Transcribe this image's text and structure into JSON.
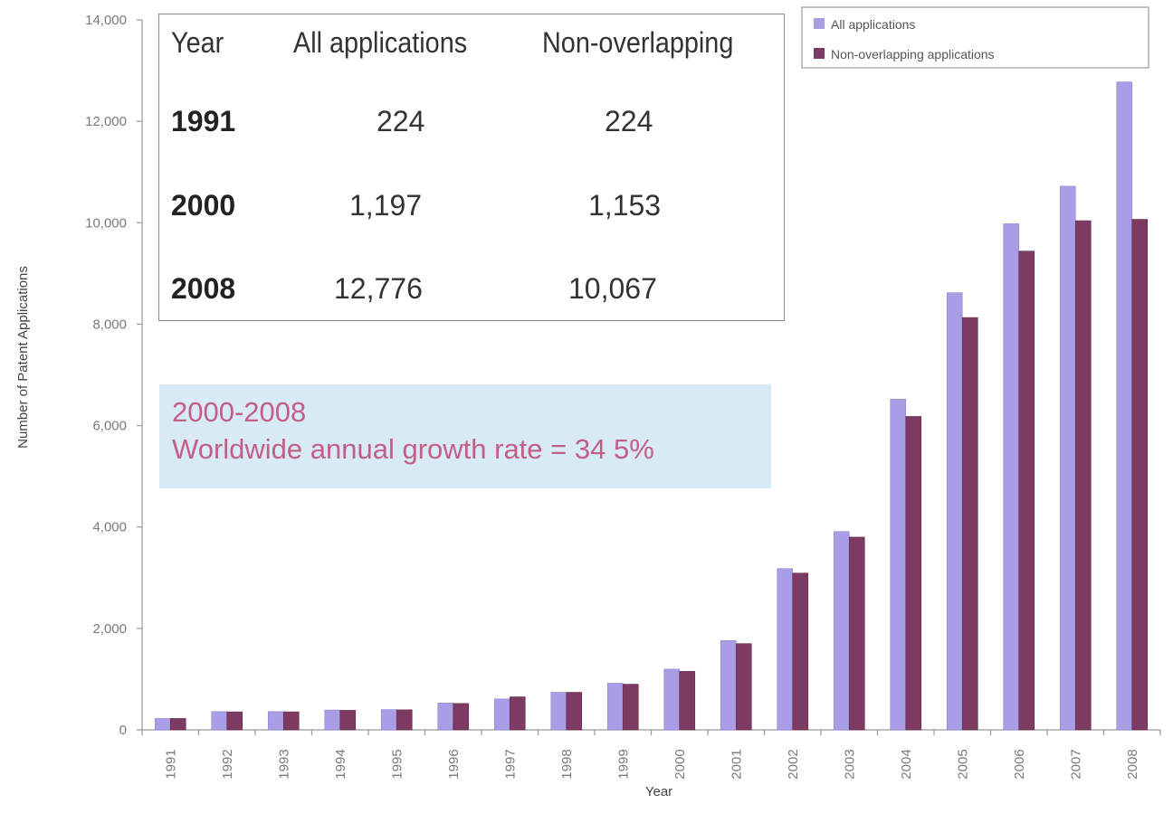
{
  "chart_data": {
    "type": "bar",
    "categories": [
      "1991",
      "1992",
      "1993",
      "1994",
      "1995",
      "1996",
      "1997",
      "1998",
      "1999",
      "2000",
      "2001",
      "2002",
      "2003",
      "2004",
      "2005",
      "2006",
      "2007",
      "2008"
    ],
    "series": [
      {
        "name": "All applications",
        "color": "#a99ee6",
        "values": [
          224,
          360,
          360,
          390,
          400,
          530,
          610,
          740,
          920,
          1197,
          1760,
          3180,
          3910,
          6520,
          8620,
          9980,
          10720,
          12776
        ]
      },
      {
        "name": "Non-overlapping applications",
        "color": "#7d3a63",
        "values": [
          224,
          355,
          355,
          385,
          395,
          520,
          650,
          740,
          900,
          1153,
          1700,
          3090,
          3800,
          6180,
          8130,
          9440,
          10040,
          10067
        ]
      }
    ],
    "xlabel": "Year",
    "ylabel": "Number of Patent Applications",
    "ylim": [
      0,
      14000
    ],
    "yticks": [
      0,
      2000,
      4000,
      6000,
      8000,
      10000,
      12000,
      14000
    ],
    "ytick_labels": [
      "0",
      "2,000",
      "4,000",
      "6,000",
      "8,000",
      "10,000",
      "12,000",
      "14,000"
    ],
    "legend_position": "top-right",
    "grid": false
  },
  "summary_table": {
    "headers": [
      "Year",
      "All applications",
      "Non-overlapping"
    ],
    "rows": [
      [
        "1991",
        "224",
        "224"
      ],
      [
        "2000",
        "1,197",
        "1,153"
      ],
      [
        "2008",
        "12,776",
        "10,067"
      ]
    ]
  },
  "annotation": {
    "line1": "2000-2008",
    "line2": "Worldwide annual growth rate = 34 5%"
  }
}
